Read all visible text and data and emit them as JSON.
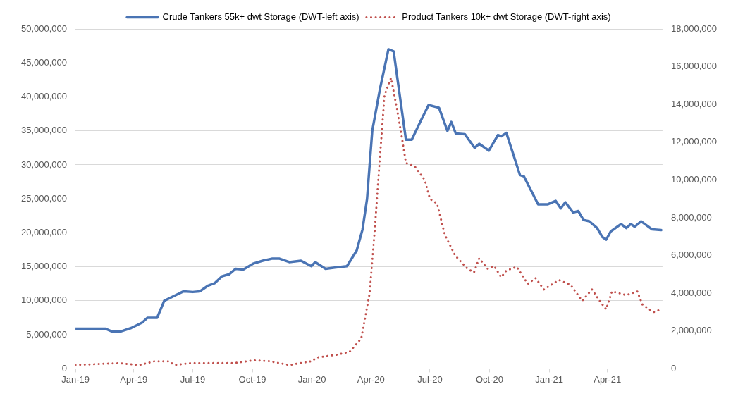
{
  "chart_data": {
    "type": "line",
    "xlim": [
      "2019-01-01",
      "2021-06-25"
    ],
    "xticks": [
      {
        "value": "2019-01-01",
        "label": "Jan-19"
      },
      {
        "value": "2019-04-01",
        "label": "Apr-19"
      },
      {
        "value": "2019-07-01",
        "label": "Jul-19"
      },
      {
        "value": "2019-10-01",
        "label": "Oct-19"
      },
      {
        "value": "2020-01-01",
        "label": "Jan-20"
      },
      {
        "value": "2020-04-01",
        "label": "Apr-20"
      },
      {
        "value": "2020-07-01",
        "label": "Jul-20"
      },
      {
        "value": "2020-10-01",
        "label": "Oct-20"
      },
      {
        "value": "2021-01-01",
        "label": "Jan-21"
      },
      {
        "value": "2021-04-01",
        "label": "Apr-21"
      }
    ],
    "ylim": [
      0,
      50000000
    ],
    "yticks": [
      0,
      {
        "value": 5000000,
        "label": "5,000,000"
      },
      {
        "value": 10000000,
        "label": "10,000,000"
      },
      {
        "value": 15000000,
        "label": "15,000,000"
      },
      {
        "value": 20000000,
        "label": "20,000,000"
      },
      {
        "value": 25000000,
        "label": "25,000,000"
      },
      {
        "value": 30000000,
        "label": "30,000,000"
      },
      {
        "value": 35000000,
        "label": "35,000,000"
      },
      {
        "value": 40000000,
        "label": "40,000,000"
      },
      {
        "value": 45000000,
        "label": "45,000,000"
      },
      {
        "value": 50000000,
        "label": "50,000,000"
      }
    ],
    "y2lim": [
      0,
      18000000
    ],
    "y2ticks": [
      0,
      {
        "value": 2000000,
        "label": "2,000,000"
      },
      {
        "value": 4000000,
        "label": "4,000,000"
      },
      {
        "value": 6000000,
        "label": "6,000,000"
      },
      {
        "value": 8000000,
        "label": "8,000,000"
      },
      {
        "value": 10000000,
        "label": "10,000,000"
      },
      {
        "value": 12000000,
        "label": "12,000,000"
      },
      {
        "value": 14000000,
        "label": "14,000,000"
      },
      {
        "value": 16000000,
        "label": "16,000,000"
      },
      {
        "value": 18000000,
        "label": "18,000,000"
      }
    ],
    "grid": "y",
    "legend": "top",
    "marker": "none",
    "series": [
      {
        "name": "Crude Tankers 55k+ dwt Storage (DWT-left axis)",
        "color": "#4a74b4",
        "line_style": "solid",
        "x": [
          "2019-01-01",
          "2019-02-16",
          "2019-02-26",
          "2019-03-12",
          "2019-03-28",
          "2019-04-14",
          "2019-04-22",
          "2019-05-07",
          "2019-05-18",
          "2019-06-06",
          "2019-06-17",
          "2019-07-01",
          "2019-07-12",
          "2019-07-24",
          "2019-08-04",
          "2019-08-15",
          "2019-08-26",
          "2019-09-05",
          "2019-09-17",
          "2019-10-03",
          "2019-10-17",
          "2019-10-31",
          "2019-11-12",
          "2019-11-27",
          "2019-12-15",
          "2019-12-31",
          "2020-01-06",
          "2020-01-22",
          "2020-02-05",
          "2020-02-24",
          "2020-03-10",
          "2020-03-19",
          "2020-03-26",
          "2020-04-03",
          "2020-04-15",
          "2020-04-28",
          "2020-05-06",
          "2020-05-25",
          "2020-06-03",
          "2020-06-17",
          "2020-06-29",
          "2020-07-15",
          "2020-07-28",
          "2020-08-03",
          "2020-08-10",
          "2020-08-24",
          "2020-09-08",
          "2020-09-15",
          "2020-09-30",
          "2020-10-14",
          "2020-10-19",
          "2020-10-27",
          "2020-11-17",
          "2020-11-23",
          "2020-12-15",
          "2020-12-30",
          "2021-01-11",
          "2021-01-19",
          "2021-01-26",
          "2021-02-07",
          "2021-02-15",
          "2021-02-23",
          "2021-03-04",
          "2021-03-16",
          "2021-03-24",
          "2021-03-30",
          "2021-04-06",
          "2021-04-22",
          "2021-04-30",
          "2021-05-07",
          "2021-05-13",
          "2021-05-23",
          "2021-06-09",
          "2021-06-23"
        ],
        "values": [
          5900000,
          5900000,
          5500000,
          5500000,
          6000000,
          6800000,
          7500000,
          7500000,
          10000000,
          10900000,
          11400000,
          11300000,
          11400000,
          12200000,
          12600000,
          13600000,
          13900000,
          14700000,
          14600000,
          15500000,
          15900000,
          16200000,
          16200000,
          15700000,
          15900000,
          15100000,
          15700000,
          14700000,
          14900000,
          15100000,
          17400000,
          20500000,
          25000000,
          35000000,
          41200000,
          47000000,
          46700000,
          33700000,
          33700000,
          36500000,
          38800000,
          38400000,
          35000000,
          36300000,
          34600000,
          34500000,
          32500000,
          33100000,
          32100000,
          34400000,
          34200000,
          34700000,
          28500000,
          28300000,
          24200000,
          24200000,
          24700000,
          23600000,
          24500000,
          23000000,
          23200000,
          21900000,
          21700000,
          20700000,
          19400000,
          19000000,
          20200000,
          21300000,
          20700000,
          21300000,
          20900000,
          21700000,
          20500000,
          20400000
        ]
      },
      {
        "name": "Product Tankers 10k+ dwt Storage (DWT-right axis)",
        "color": "#c0504d",
        "line_style": "dotted",
        "axis": "y2",
        "x": [
          "2019-01-01",
          "2019-03-08",
          "2019-04-10",
          "2019-05-03",
          "2019-05-25",
          "2019-06-03",
          "2019-06-27",
          "2019-09-02",
          "2019-10-03",
          "2019-10-28",
          "2019-11-27",
          "2019-12-31",
          "2020-01-09",
          "2020-02-09",
          "2020-02-28",
          "2020-03-17",
          "2020-03-30",
          "2020-04-07",
          "2020-04-14",
          "2020-04-22",
          "2020-05-02",
          "2020-05-11",
          "2020-05-19",
          "2020-05-25",
          "2020-06-08",
          "2020-06-23",
          "2020-07-01",
          "2020-07-12",
          "2020-07-24",
          "2020-08-09",
          "2020-08-28",
          "2020-09-07",
          "2020-09-15",
          "2020-09-28",
          "2020-10-08",
          "2020-10-19",
          "2020-10-27",
          "2020-11-12",
          "2020-11-29",
          "2020-12-11",
          "2020-12-24",
          "2021-01-16",
          "2021-02-03",
          "2021-02-21",
          "2021-03-08",
          "2021-03-22",
          "2021-03-30",
          "2021-04-08",
          "2021-04-30",
          "2021-05-17",
          "2021-05-25",
          "2021-06-11",
          "2021-06-23"
        ],
        "values": [
          200000,
          300000,
          200000,
          400000,
          400000,
          200000,
          300000,
          300000,
          450000,
          400000,
          200000,
          400000,
          600000,
          750000,
          900000,
          1600000,
          4000000,
          7400000,
          10800000,
          14500000,
          15400000,
          13800000,
          12200000,
          10900000,
          10700000,
          10000000,
          9000000,
          8750000,
          7100000,
          6000000,
          5300000,
          5100000,
          5850000,
          5300000,
          5450000,
          4850000,
          5200000,
          5400000,
          4500000,
          4800000,
          4200000,
          4700000,
          4450000,
          3600000,
          4200000,
          3500000,
          3150000,
          4100000,
          3900000,
          4100000,
          3400000,
          3000000,
          3150000
        ]
      }
    ]
  }
}
